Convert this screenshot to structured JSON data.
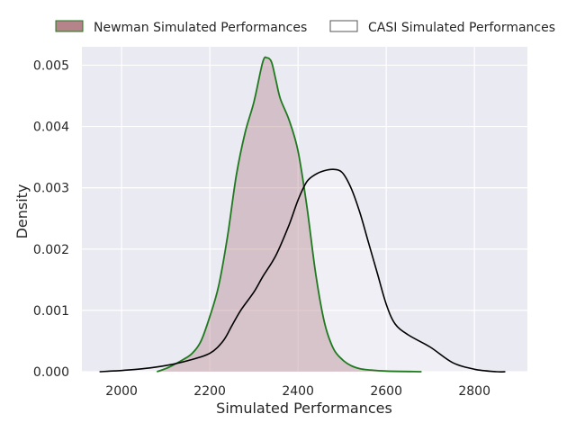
{
  "chart_data": {
    "type": "area",
    "xlabel": "Simulated Performances",
    "ylabel": "Density",
    "xlim": [
      1910,
      2920
    ],
    "ylim": [
      0,
      0.0053
    ],
    "x_ticks": [
      2000,
      2200,
      2400,
      2600,
      2800
    ],
    "x_tick_labels": [
      "2000",
      "2200",
      "2400",
      "2600",
      "2800"
    ],
    "y_ticks": [
      0.0,
      0.001,
      0.002,
      0.003,
      0.004,
      0.005
    ],
    "y_tick_labels": [
      "0.000",
      "0.001",
      "0.002",
      "0.003",
      "0.004",
      "0.005"
    ],
    "grid": true,
    "legend_position": "top",
    "series": [
      {
        "name": "Newman Simulated Performances",
        "style": "filled-kde",
        "fill_color": "#b5838a",
        "line_color": "#1f7a1f",
        "x": [
          2080,
          2100,
          2120,
          2140,
          2160,
          2180,
          2200,
          2220,
          2240,
          2260,
          2280,
          2300,
          2320,
          2330,
          2340,
          2350,
          2360,
          2380,
          2400,
          2420,
          2440,
          2460,
          2480,
          2500,
          2520,
          2540,
          2560,
          2600,
          2680
        ],
        "values": [
          0.0,
          5e-05,
          0.00012,
          0.0002,
          0.0003,
          0.0005,
          0.0009,
          0.0014,
          0.0022,
          0.0032,
          0.0039,
          0.0044,
          0.00505,
          0.00512,
          0.00505,
          0.00475,
          0.00445,
          0.0041,
          0.0036,
          0.0027,
          0.0016,
          0.0008,
          0.00038,
          0.0002,
          0.0001,
          5e-05,
          3e-05,
          1e-05,
          0.0
        ]
      },
      {
        "name": "CASI Simulated Performances",
        "style": "line-kde",
        "fill_color": "#ffffff",
        "line_color": "#000000",
        "x": [
          1950,
          2000,
          2050,
          2100,
          2150,
          2200,
          2230,
          2250,
          2270,
          2300,
          2320,
          2350,
          2380,
          2400,
          2420,
          2440,
          2460,
          2480,
          2500,
          2520,
          2540,
          2560,
          2580,
          2600,
          2620,
          2650,
          2700,
          2750,
          2800,
          2850,
          2870
        ],
        "values": [
          0.0,
          2e-05,
          5e-05,
          0.0001,
          0.00018,
          0.0003,
          0.0005,
          0.00075,
          0.001,
          0.0013,
          0.00155,
          0.0019,
          0.0024,
          0.0028,
          0.0031,
          0.00322,
          0.00328,
          0.0033,
          0.00325,
          0.003,
          0.0026,
          0.0021,
          0.0016,
          0.0011,
          0.00078,
          0.0006,
          0.0004,
          0.00015,
          4e-05,
          0.0,
          0.0
        ]
      }
    ]
  }
}
